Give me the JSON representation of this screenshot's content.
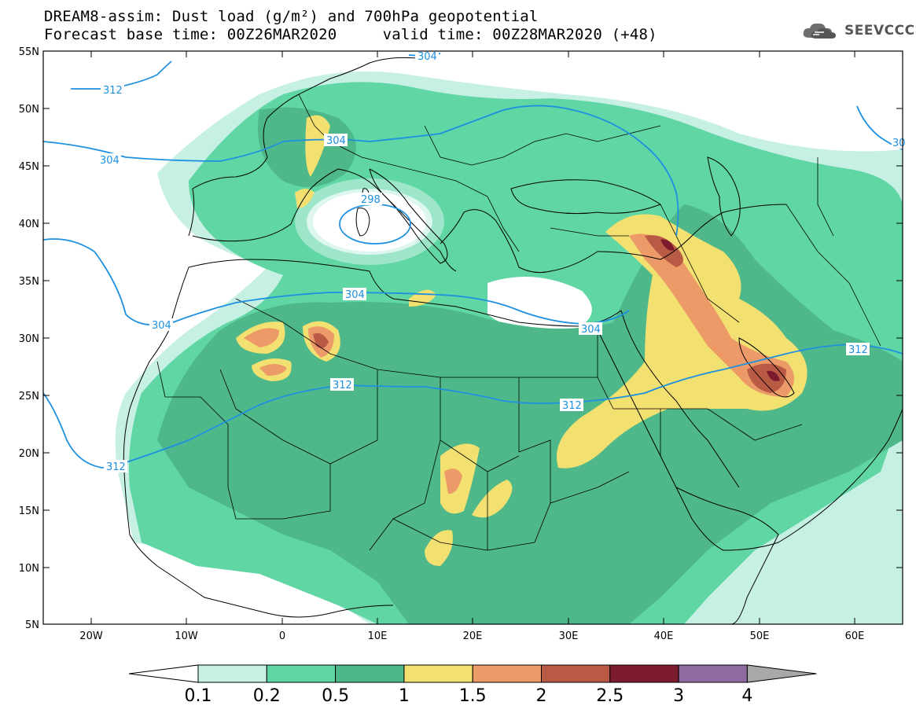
{
  "header": {
    "title_line1": "DREAM8-assim: Dust load (g/m²) and 700hPa geopotential",
    "title_line2": "Forecast base time: 00Z26MAR2020     valid time: 00Z28MAR2020 (+48)",
    "logo_text": "SEEVCCC",
    "logo_icon": "cloud-icon"
  },
  "map": {
    "lat_labels": [
      "55N",
      "50N",
      "45N",
      "40N",
      "35N",
      "30N",
      "25N",
      "20N",
      "15N",
      "10N",
      "5N"
    ],
    "lon_labels": [
      "20W",
      "10W",
      "0",
      "10E",
      "20E",
      "30E",
      "40E",
      "50E",
      "60E"
    ],
    "contour_labels": [
      "304",
      "312",
      "304",
      "304",
      "298",
      "304",
      "304",
      "304",
      "312",
      "312",
      "312",
      "312",
      "30"
    ],
    "lon_range": [
      -25,
      65
    ],
    "lat_range": [
      5,
      55
    ],
    "contour_color": "#1e90e0",
    "coast_color": "#000000"
  },
  "colorbar": {
    "labels": [
      "0.1",
      "0.2",
      "0.5",
      "1",
      "1.5",
      "2",
      "2.5",
      "3",
      "4"
    ],
    "colors": [
      "#c6f0e4",
      "#5fd6a4",
      "#4fb88a",
      "#f2e070",
      "#ec9a68",
      "#b85a44",
      "#7c1a2e",
      "#8e6aa0"
    ],
    "under_color": "#ffffff",
    "over_color": "#a8a8a8"
  }
}
